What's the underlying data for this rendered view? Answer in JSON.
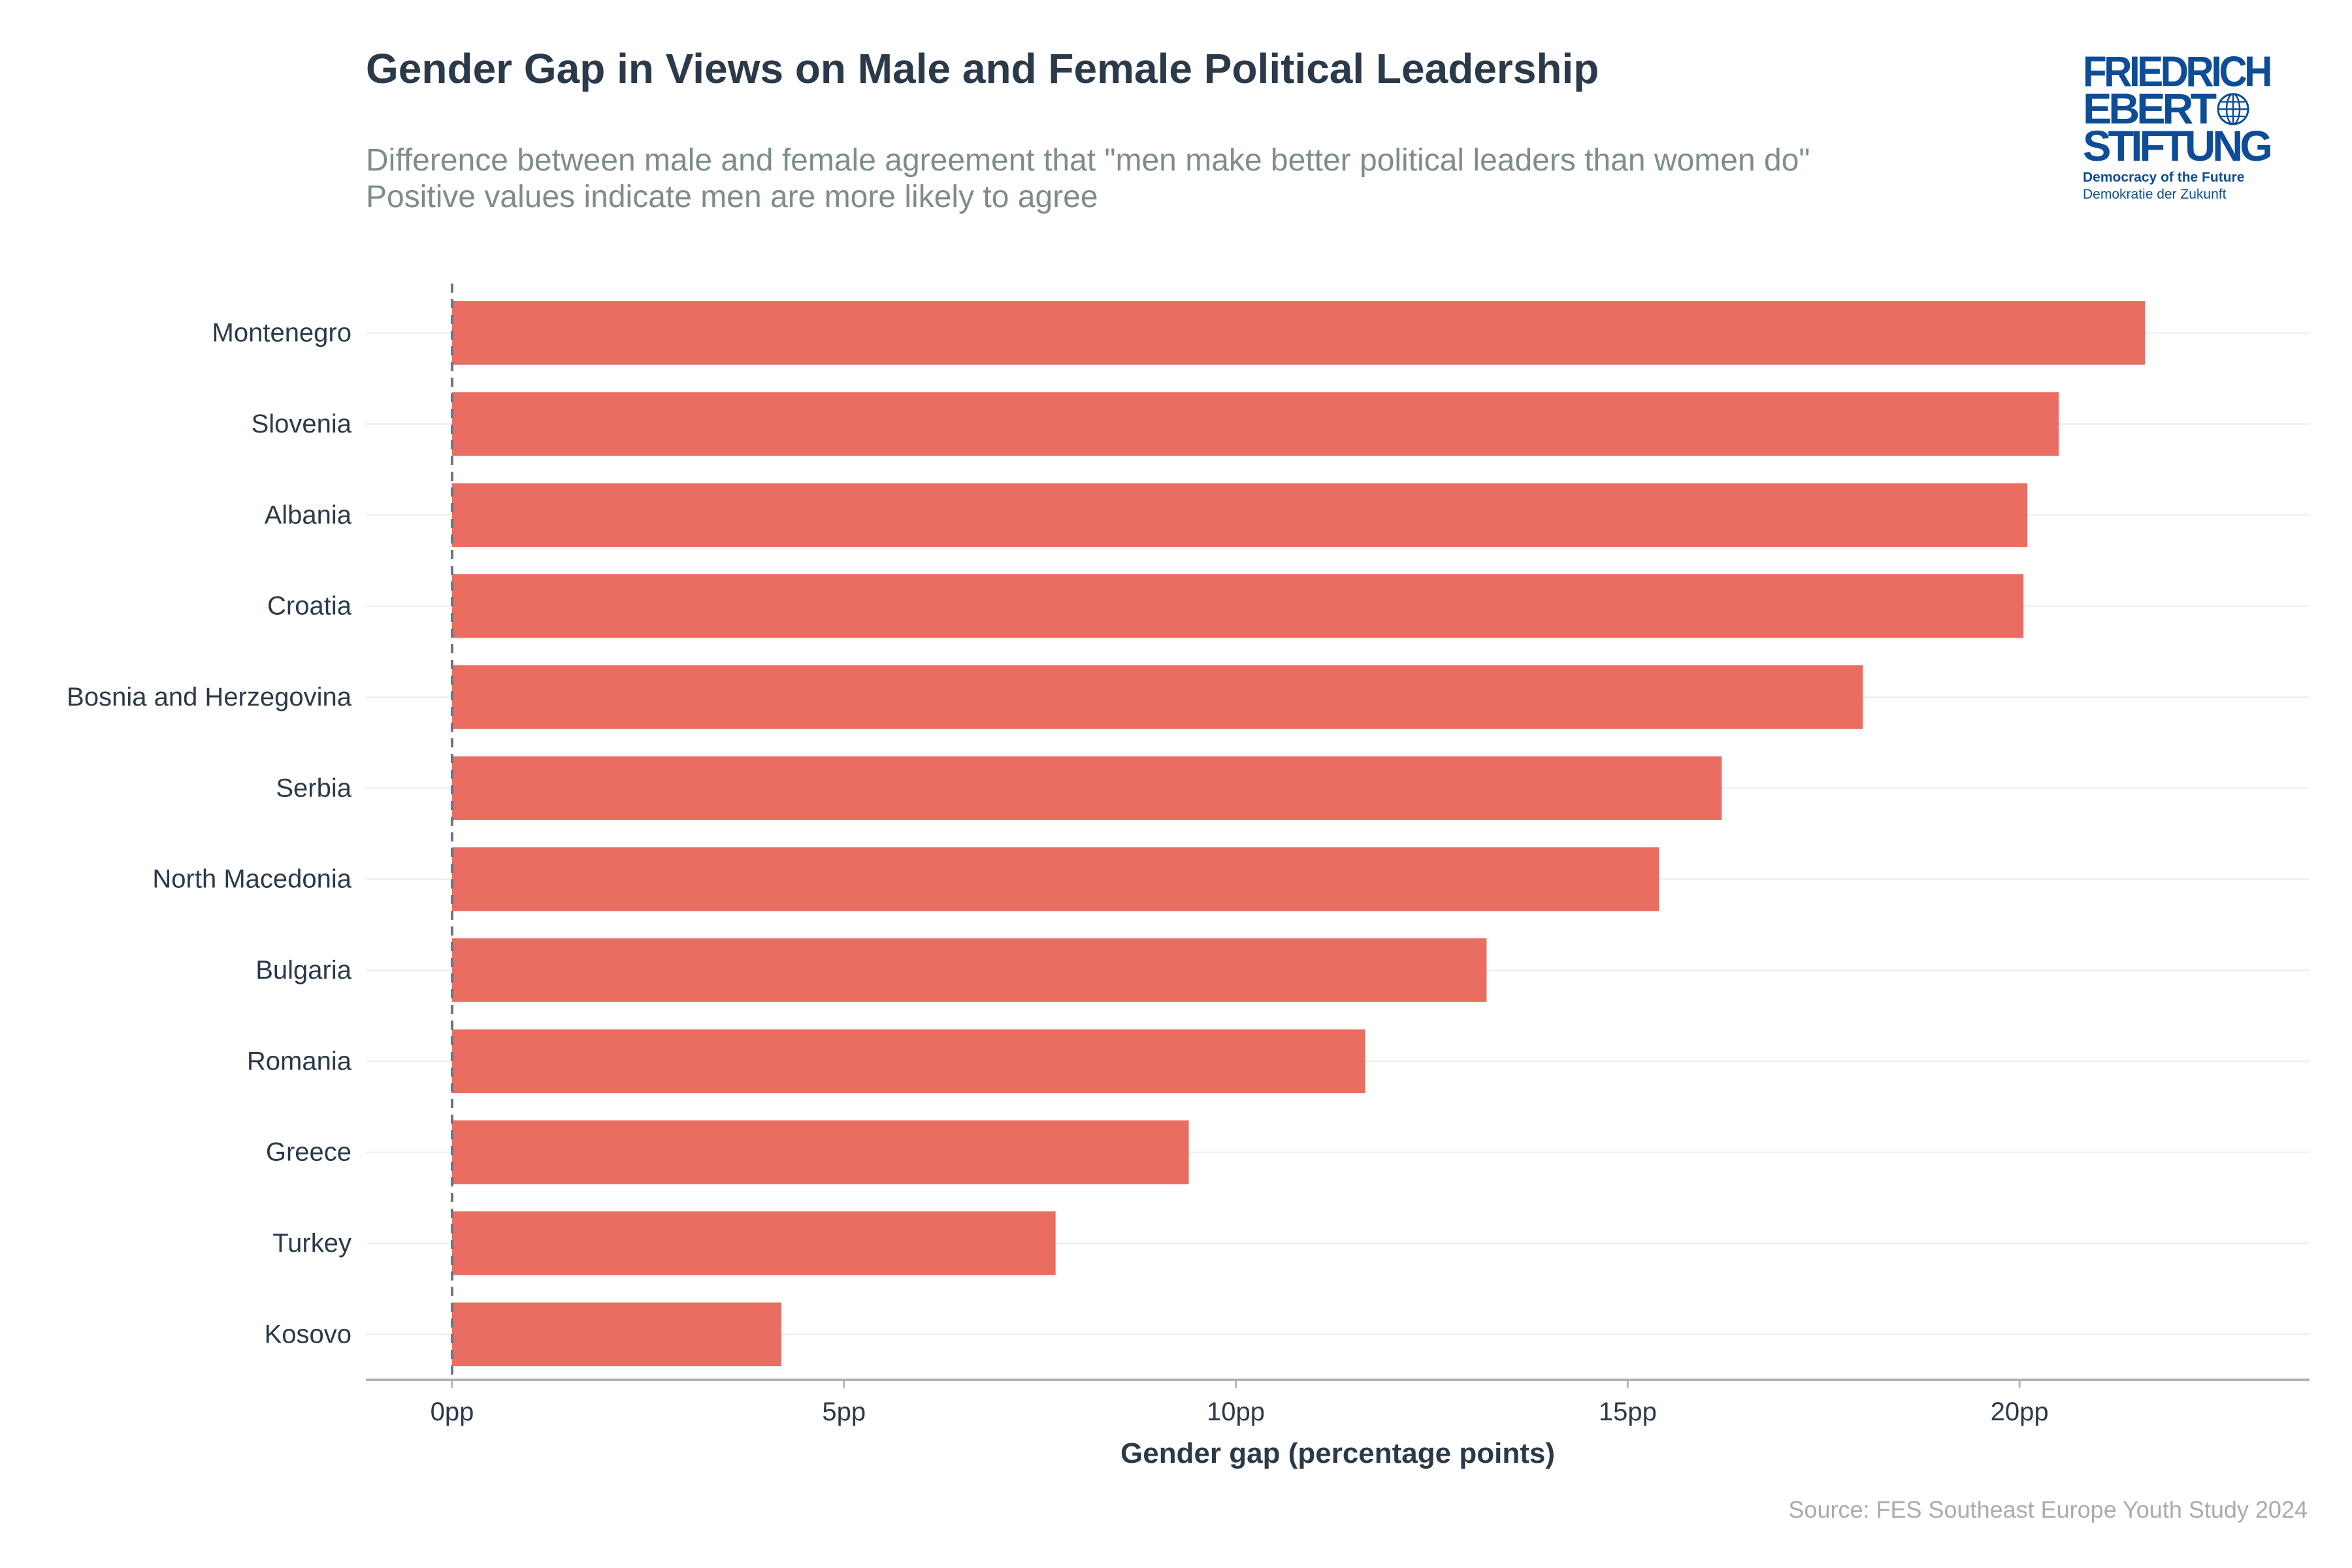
{
  "chart_data": {
    "type": "bar",
    "orientation": "horizontal",
    "title": "Gender Gap in Views on Male and Female Political Leadership",
    "subtitle": [
      "Difference between male and female agreement that \"men make better political leaders than women do\"",
      "Positive values indicate men are more likely to agree"
    ],
    "categories": [
      "Montenegro",
      "Slovenia",
      "Albania",
      "Croatia",
      "Bosnia and Herzegovina",
      "Serbia",
      "North Macedonia",
      "Bulgaria",
      "Romania",
      "Greece",
      "Turkey",
      "Kosovo"
    ],
    "values": [
      21.6,
      20.5,
      20.1,
      20.05,
      18.0,
      16.2,
      15.4,
      13.2,
      11.65,
      9.4,
      7.7,
      4.2
    ],
    "xlabel": "Gender gap (percentage points)",
    "ylabel": "",
    "xlim": [
      -1.1,
      23.7
    ],
    "xticks": [
      0,
      5,
      10,
      15,
      20
    ],
    "xtick_labels": [
      "0pp",
      "5pp",
      "10pp",
      "15pp",
      "20pp"
    ],
    "reference_line": 0,
    "bar_color": "#e8685b",
    "source": "Source: FES Southeast Europe Youth Study 2024"
  },
  "logo": {
    "lines": [
      "FRIEDRICH",
      "EBERT",
      "STIFTUNG"
    ],
    "tagline_en": "Democracy of the Future",
    "tagline_de": "Demokratie der Zukunft",
    "color": "#0d4d97"
  }
}
